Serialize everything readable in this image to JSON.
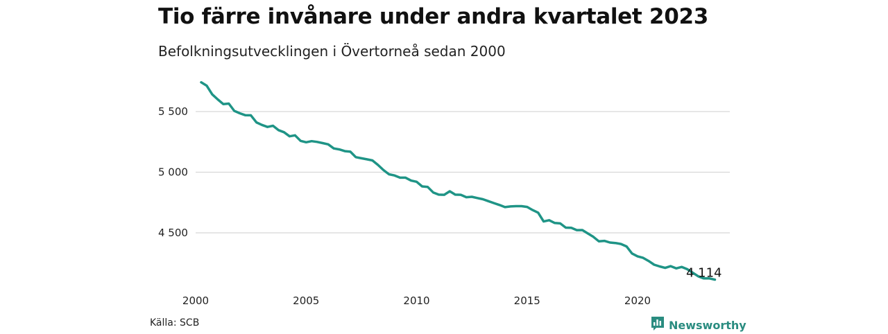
{
  "title": "Tio färre invånare under andra kvartalet 2023",
  "subtitle": "Befolkningsutvecklingen i Övertorneå sedan 2000",
  "source": "Källa: SCB",
  "brand": {
    "name": "Newsworthy",
    "icon": "newsworthy-logo-icon",
    "color": "#2a8c80"
  },
  "chart_data": {
    "type": "line",
    "title": "Tio färre invånare under andra kvartalet 2023",
    "subtitle": "Befolkningsutvecklingen i Övertorneå sedan 2000",
    "xlabel": "",
    "ylabel": "",
    "xlim": [
      2000,
      2024.2
    ],
    "ylim": [
      4000,
      5800
    ],
    "x_ticks": [
      2000,
      2005,
      2010,
      2015,
      2020
    ],
    "x_tick_labels": [
      "2000",
      "2005",
      "2010",
      "2015",
      "2020"
    ],
    "y_ticks": [
      4500,
      5000,
      5500
    ],
    "y_tick_labels": [
      "4 500",
      "5 000",
      "5 500"
    ],
    "grid": "horizontal",
    "line_color": "#1f9486",
    "end_label": "4 114",
    "series": [
      {
        "x": [
          2000.25,
          2000.5,
          2000.75,
          2001.0,
          2001.25,
          2001.5,
          2001.75,
          2002.0,
          2002.25,
          2002.5,
          2002.75,
          2003.0,
          2003.25,
          2003.5,
          2003.75,
          2004.0,
          2004.25,
          2004.5,
          2004.75,
          2005.0,
          2005.25,
          2005.5,
          2005.75,
          2006.0,
          2006.25,
          2006.5,
          2006.75,
          2007.0,
          2007.25,
          2007.5,
          2007.75,
          2008.0,
          2008.25,
          2008.5,
          2008.75,
          2009.0,
          2009.25,
          2009.5,
          2009.75,
          2010.0,
          2010.25,
          2010.5,
          2010.75,
          2011.0,
          2011.25,
          2011.5,
          2011.75,
          2012.0,
          2012.25,
          2012.5,
          2012.75,
          2013.0,
          2013.25,
          2013.5,
          2013.75,
          2014.0,
          2014.25,
          2014.5,
          2014.75,
          2015.0,
          2015.25,
          2015.5,
          2015.75,
          2016.0,
          2016.25,
          2016.5,
          2016.75,
          2017.0,
          2017.25,
          2017.5,
          2017.75,
          2018.0,
          2018.25,
          2018.5,
          2018.75,
          2019.0,
          2019.25,
          2019.5,
          2019.75,
          2020.0,
          2020.25,
          2020.5,
          2020.75,
          2021.0,
          2021.25,
          2021.5,
          2021.75,
          2022.0,
          2022.25,
          2022.5,
          2022.75,
          2023.0,
          2023.25,
          2023.5
        ],
        "values": [
          5741,
          5714,
          5642,
          5600,
          5562,
          5566,
          5506,
          5486,
          5470,
          5469,
          5411,
          5390,
          5373,
          5383,
          5347,
          5330,
          5296,
          5304,
          5258,
          5247,
          5256,
          5250,
          5240,
          5230,
          5196,
          5188,
          5174,
          5169,
          5124,
          5115,
          5106,
          5097,
          5060,
          5018,
          4983,
          4973,
          4955,
          4955,
          4931,
          4921,
          4883,
          4879,
          4833,
          4815,
          4814,
          4843,
          4815,
          4814,
          4794,
          4797,
          4787,
          4777,
          4761,
          4745,
          4730,
          4712,
          4718,
          4720,
          4720,
          4714,
          4688,
          4666,
          4594,
          4604,
          4581,
          4578,
          4543,
          4541,
          4522,
          4523,
          4495,
          4467,
          4430,
          4434,
          4420,
          4416,
          4408,
          4388,
          4330,
          4306,
          4294,
          4268,
          4237,
          4223,
          4211,
          4225,
          4207,
          4219,
          4200,
          4171,
          4141,
          4124,
          4124,
          4114
        ]
      }
    ]
  }
}
